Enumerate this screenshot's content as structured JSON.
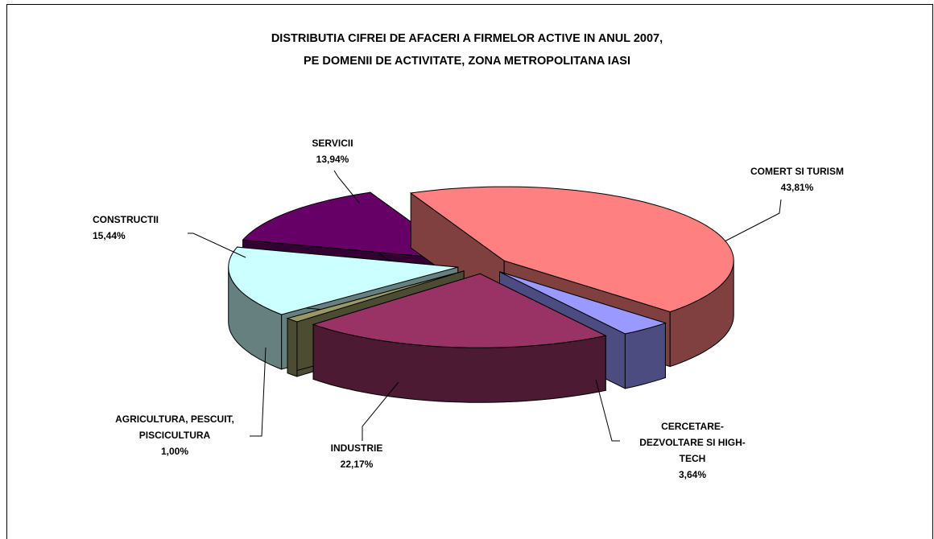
{
  "chart_data": {
    "type": "pie3d",
    "title": [
      "DISTRIBUTIA CIFREI DE AFACERI A FIRMELOR ACTIVE IN ANUL 2007,",
      "PE DOMENII DE ACTIVITATE, ZONA METROPOLITANA IASI"
    ],
    "categories": [
      "COMERT SI TURISM",
      "CERCETARE-DEZVOLTARE SI HIGH-TECH",
      "INDUSTRIE",
      "AGRICULTURA, PESCUIT, PISCICULTURA",
      "CONSTRUCTII",
      "SERVICII"
    ],
    "values": [
      43.81,
      3.64,
      22.17,
      1.0,
      15.44,
      13.94
    ],
    "value_labels": [
      "43,81%",
      "3,64%",
      "22,17%",
      "1,00%",
      "15,44%",
      "13,94%"
    ],
    "colors": [
      "#FF8080",
      "#9999FF",
      "#993366",
      "#999966",
      "#CCFFFF",
      "#660066"
    ]
  }
}
